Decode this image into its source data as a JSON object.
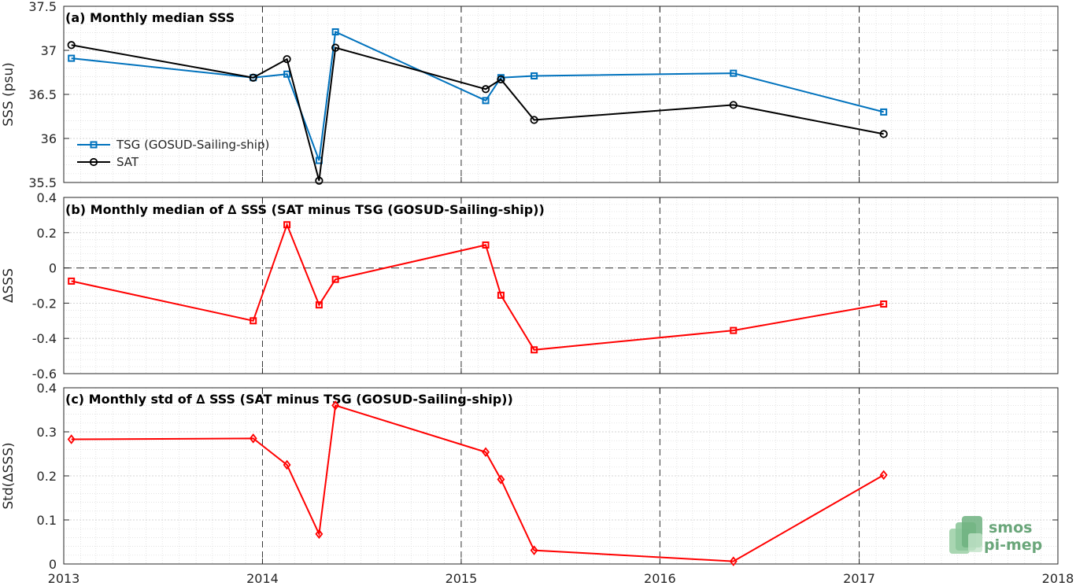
{
  "chart_data": [
    {
      "type": "line",
      "title": "(a) Monthly median SSS",
      "ylabel": "SSS (psu)",
      "xlabel": "",
      "xlim": [
        "2013-01-01",
        "2018-01-01"
      ],
      "ylim": [
        35.5,
        37.5
      ],
      "yticks": [
        "35.5",
        "36",
        "36.5",
        "37",
        "37.5"
      ],
      "legend_position": "lower-left",
      "series": [
        {
          "name": "TSG (GOSUD-Sailing-ship)",
          "color": "#0072bd",
          "marker": "square",
          "x": [
            "2013-01-15",
            "2013-12-15",
            "2014-02-15",
            "2014-04-15",
            "2014-05-15",
            "2015-02-15",
            "2015-03-15",
            "2015-05-15",
            "2016-05-15",
            "2017-02-15"
          ],
          "values": [
            36.91,
            36.69,
            36.73,
            35.75,
            37.21,
            36.43,
            36.69,
            36.71,
            36.74,
            36.3
          ]
        },
        {
          "name": "SAT",
          "color": "#000000",
          "marker": "circle",
          "x": [
            "2013-01-15",
            "2013-12-15",
            "2014-02-15",
            "2014-04-15",
            "2014-05-15",
            "2015-02-15",
            "2015-03-15",
            "2015-05-15",
            "2016-05-15",
            "2017-02-15"
          ],
          "values": [
            37.06,
            36.69,
            36.9,
            35.52,
            37.03,
            36.56,
            36.67,
            36.21,
            36.38,
            36.05
          ]
        }
      ]
    },
    {
      "type": "line",
      "title": "(b) Monthly median of ∆ SSS (SAT minus TSG (GOSUD-Sailing-ship))",
      "ylabel": "∆SSS",
      "xlabel": "",
      "xlim": [
        "2013-01-01",
        "2018-01-01"
      ],
      "ylim": [
        -0.6,
        0.4
      ],
      "yticks": [
        "-0.6",
        "-0.4",
        "-0.2",
        "0",
        "0.2",
        "0.4"
      ],
      "zero_line": "dashed",
      "series": [
        {
          "color": "#ff0000",
          "marker": "square",
          "x": [
            "2013-01-15",
            "2013-12-15",
            "2014-02-15",
            "2014-04-15",
            "2014-05-15",
            "2015-02-15",
            "2015-03-15",
            "2015-05-15",
            "2016-05-15",
            "2017-02-15"
          ],
          "values": [
            -0.075,
            -0.3,
            0.245,
            -0.21,
            -0.065,
            0.13,
            -0.155,
            -0.465,
            -0.355,
            -0.205
          ]
        }
      ]
    },
    {
      "type": "line",
      "title": "(c) Monthly std of ∆ SSS (SAT minus TSG (GOSUD-Sailing-ship))",
      "ylabel": "Std(∆SSS)",
      "xlabel": "",
      "xlim": [
        "2013-01-01",
        "2018-01-01"
      ],
      "ylim": [
        0,
        0.4
      ],
      "yticks": [
        "0",
        "0.1",
        "0.2",
        "0.3",
        "0.4"
      ],
      "xticks": [
        "2013",
        "2014",
        "2015",
        "2016",
        "2017",
        "2018"
      ],
      "series": [
        {
          "color": "#ff0000",
          "marker": "diamond",
          "x": [
            "2013-01-15",
            "2013-12-15",
            "2014-02-15",
            "2014-04-15",
            "2014-05-15",
            "2015-02-15",
            "2015-03-15",
            "2015-05-15",
            "2016-05-15",
            "2017-02-15"
          ],
          "values": [
            0.283,
            0.285,
            0.225,
            0.068,
            0.36,
            0.254,
            0.192,
            0.031,
            0.006,
            0.202
          ]
        }
      ]
    }
  ],
  "logo": {
    "line1": "smos",
    "line2": "pi-mep",
    "color": "#6aa67a"
  }
}
